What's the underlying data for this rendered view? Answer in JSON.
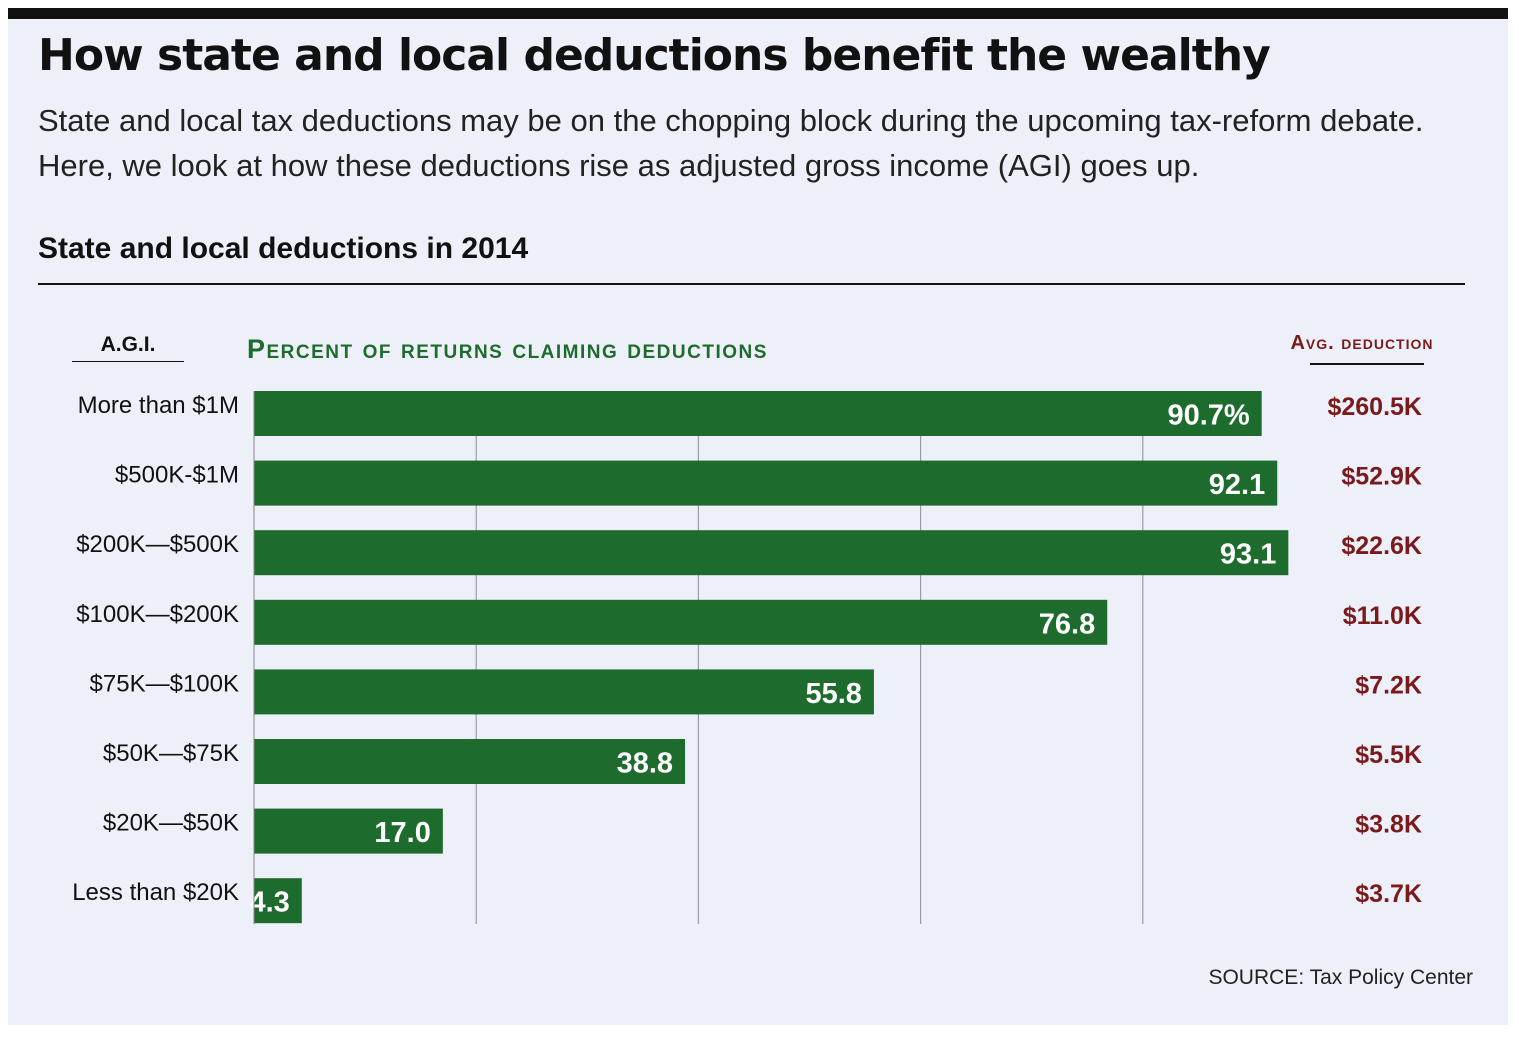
{
  "header": {
    "title": "How state and local deductions benefit the wealthy",
    "subtitle": "State and local tax deductions may be on the chopping block during the upcoming tax-reform debate. Here, we look at how these deductions rise as adjusted gross income (AGI) goes up."
  },
  "section_title": "State and local deductions in 2014",
  "columns": {
    "agi_header": "A.G.I.",
    "percent_header": "Percent of returns claiming deductions",
    "avg_header": "Avg. deduction"
  },
  "source": "SOURCE: Tax Policy Center",
  "colors": {
    "bar": "#1e6b2e",
    "avg_text": "#7a1a1d",
    "gridline": "#9a9ca3",
    "background": "#edf0f8"
  },
  "chart_data": {
    "type": "bar",
    "orientation": "horizontal",
    "categories": [
      "More than $1M",
      "$500K-$1M",
      "$200K—$500K",
      "$100K—$200K",
      "$75K—$100K",
      "$50K—$75K",
      "$20K—$50K",
      "Less than $20K"
    ],
    "series": [
      {
        "name": "Percent of returns claiming deductions",
        "values": [
          90.7,
          92.1,
          93.1,
          76.8,
          55.8,
          38.8,
          17.0,
          4.3
        ],
        "labels": [
          "90.7%",
          "92.1",
          "93.1",
          "76.8",
          "55.8",
          "38.8",
          "17.0",
          "4.3"
        ]
      }
    ],
    "avg_deduction": [
      "$260.5K",
      "$52.9K",
      "$22.6K",
      "$11.0K",
      "$7.2K",
      "$5.5K",
      "$3.8K",
      "$3.7K"
    ],
    "xlim": [
      0,
      100
    ],
    "gridlines_at": [
      20,
      40,
      60,
      80
    ],
    "grid": true
  }
}
